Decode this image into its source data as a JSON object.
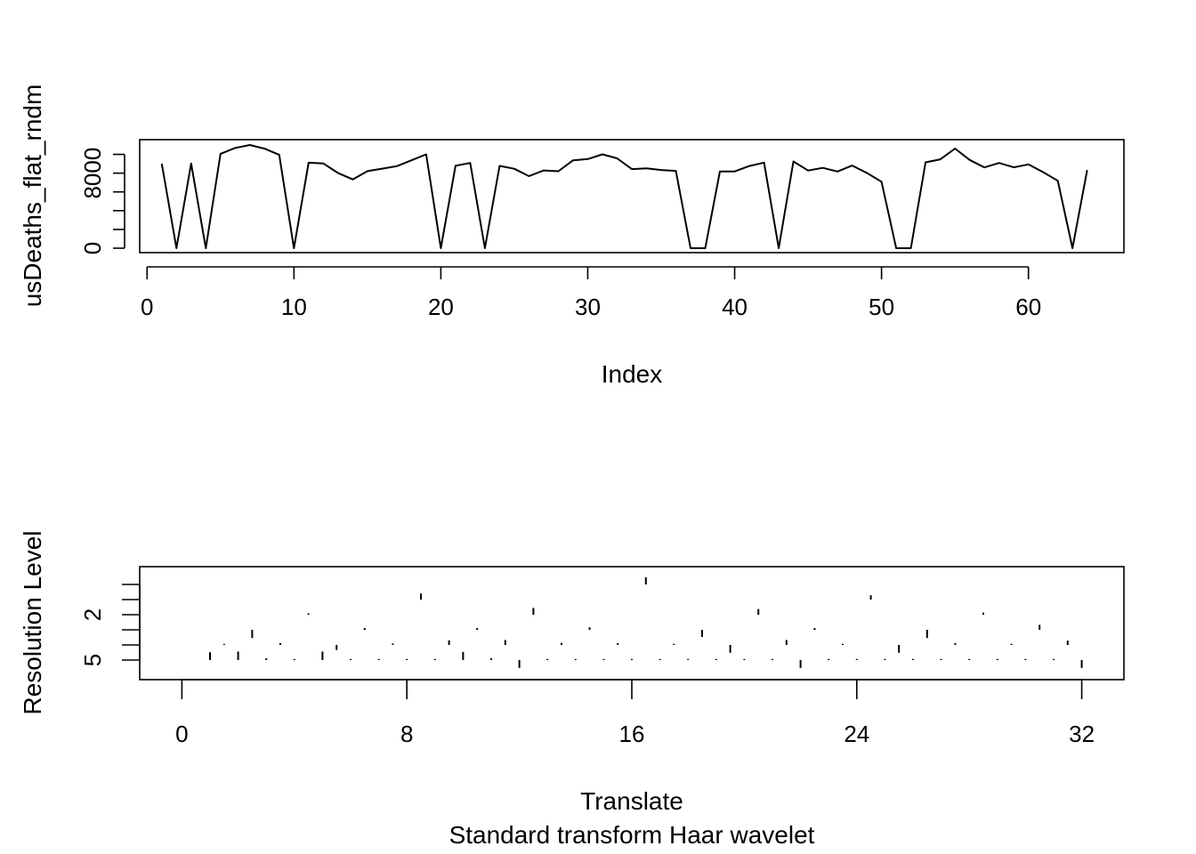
{
  "chart_data": [
    {
      "type": "line",
      "xlabel": "Index",
      "ylabel": "usDeaths_flat_rndm",
      "xlim": [
        -0.5,
        66.5
      ],
      "ylim": [
        0,
        11000
      ],
      "x_ticks": [
        0,
        10,
        20,
        30,
        40,
        50,
        60
      ],
      "y_ticks": [
        0,
        2000,
        4000,
        6000,
        8000,
        10000
      ],
      "y_tick_labels": [
        {
          "value": 0,
          "label": "0"
        },
        {
          "value": 8000,
          "label": "8000"
        }
      ],
      "x": [
        1,
        2,
        3,
        4,
        5,
        6,
        7,
        8,
        9,
        10,
        11,
        12,
        13,
        14,
        15,
        16,
        17,
        18,
        19,
        20,
        21,
        22,
        23,
        24,
        25,
        26,
        27,
        28,
        29,
        30,
        31,
        32,
        33,
        34,
        35,
        36,
        37,
        38,
        39,
        40,
        41,
        42,
        43,
        44,
        45,
        46,
        47,
        48,
        49,
        50,
        51,
        52,
        53,
        54,
        55,
        56,
        57,
        58,
        59,
        60,
        61,
        62,
        63,
        64
      ],
      "values": [
        9007,
        0,
        9027,
        0,
        10063,
        10688,
        11000,
        10609,
        9950,
        0,
        9110,
        9040,
        8010,
        7330,
        8210,
        8480,
        8740,
        9370,
        10000,
        0,
        8790,
        9080,
        0,
        8770,
        8470,
        7680,
        8290,
        8200,
        9370,
        9500,
        10000,
        9580,
        8430,
        8520,
        8340,
        8240,
        0,
        0,
        8180,
        8180,
        8760,
        9120,
        0,
        9250,
        8280,
        8560,
        8170,
        8810,
        8020,
        7080,
        0,
        0,
        9150,
        9470,
        10620,
        9410,
        8610,
        9080,
        8620,
        8930,
        8110,
        7190,
        0,
        8330
      ]
    },
    {
      "type": "scatter",
      "xlabel": "Translate",
      "subtitle": "Standard transform Haar wavelet",
      "ylabel": "Resolution Level",
      "xlim": [
        -1.5,
        33.5
      ],
      "x_ticks": [
        0,
        8,
        16,
        24,
        32
      ],
      "y_levels": [
        0,
        1,
        2,
        3,
        4,
        5
      ],
      "y_tick_labels": [
        {
          "level": 2,
          "label": "2"
        },
        {
          "level": 5,
          "label": "5"
        }
      ],
      "coefficients": [
        {
          "level": 0,
          "x": 16.5,
          "d": 2.0
        },
        {
          "level": 1,
          "x": 8.5,
          "d": 1.7
        },
        {
          "level": 1,
          "x": 24.5,
          "d": 1.2
        },
        {
          "level": 2,
          "x": 4.5,
          "d": 0.4
        },
        {
          "level": 2,
          "x": 12.5,
          "d": 1.9
        },
        {
          "level": 2,
          "x": 20.5,
          "d": 1.6
        },
        {
          "level": 2,
          "x": 28.5,
          "d": 0.6
        },
        {
          "level": 3,
          "x": 2.5,
          "d": -2.3
        },
        {
          "level": 3,
          "x": 6.5,
          "d": 0.5
        },
        {
          "level": 3,
          "x": 10.5,
          "d": 0.5
        },
        {
          "level": 3,
          "x": 14.5,
          "d": 0.7
        },
        {
          "level": 3,
          "x": 18.5,
          "d": -2.0
        },
        {
          "level": 3,
          "x": 22.5,
          "d": 0.5
        },
        {
          "level": 3,
          "x": 26.5,
          "d": -2.3
        },
        {
          "level": 3,
          "x": 30.5,
          "d": 1.4
        },
        {
          "level": 4,
          "x": 1.5,
          "d": 0.3
        },
        {
          "level": 4,
          "x": 3.5,
          "d": 0.5
        },
        {
          "level": 4,
          "x": 5.5,
          "d": -1.4
        },
        {
          "level": 4,
          "x": 7.5,
          "d": 0.4
        },
        {
          "level": 4,
          "x": 9.5,
          "d": 1.3
        },
        {
          "level": 4,
          "x": 11.5,
          "d": 1.4
        },
        {
          "level": 4,
          "x": 13.5,
          "d": 0.6
        },
        {
          "level": 4,
          "x": 15.5,
          "d": 0.5
        },
        {
          "level": 4,
          "x": 17.5,
          "d": 0.3
        },
        {
          "level": 4,
          "x": 19.5,
          "d": -2.2
        },
        {
          "level": 4,
          "x": 21.5,
          "d": 1.4
        },
        {
          "level": 4,
          "x": 23.5,
          "d": 0.3
        },
        {
          "level": 4,
          "x": 25.5,
          "d": -2.2
        },
        {
          "level": 4,
          "x": 27.5,
          "d": 0.5
        },
        {
          "level": 4,
          "x": 29.5,
          "d": 0.3
        },
        {
          "level": 4,
          "x": 31.5,
          "d": 1.2
        },
        {
          "level": 5,
          "x": 1,
          "d": 2.2
        },
        {
          "level": 5,
          "x": 2,
          "d": 2.4
        },
        {
          "level": 5,
          "x": 3,
          "d": 0.5
        },
        {
          "level": 5,
          "x": 4,
          "d": 0.3
        },
        {
          "level": 5,
          "x": 5,
          "d": 2.4
        },
        {
          "level": 5,
          "x": 6,
          "d": 0.3
        },
        {
          "level": 5,
          "x": 7,
          "d": 0.3
        },
        {
          "level": 5,
          "x": 8,
          "d": 0.3
        },
        {
          "level": 5,
          "x": 9,
          "d": 0.3
        },
        {
          "level": 5,
          "x": 10,
          "d": 2.3
        },
        {
          "level": 5,
          "x": 11,
          "d": 0.5
        },
        {
          "level": 5,
          "x": 12,
          "d": -2.2
        },
        {
          "level": 5,
          "x": 13,
          "d": 0.3
        },
        {
          "level": 5,
          "x": 14,
          "d": 0.3
        },
        {
          "level": 5,
          "x": 15,
          "d": 0.3
        },
        {
          "level": 5,
          "x": 16,
          "d": 0.3
        },
        {
          "level": 5,
          "x": 17,
          "d": 0.3
        },
        {
          "level": 5,
          "x": 18,
          "d": 0.3
        },
        {
          "level": 5,
          "x": 19,
          "d": 0.3
        },
        {
          "level": 5,
          "x": 20,
          "d": 0.3
        },
        {
          "level": 5,
          "x": 21,
          "d": 0.3
        },
        {
          "level": 5,
          "x": 22,
          "d": -2.2
        },
        {
          "level": 5,
          "x": 23,
          "d": 0.3
        },
        {
          "level": 5,
          "x": 24,
          "d": 0.3
        },
        {
          "level": 5,
          "x": 25,
          "d": 0.3
        },
        {
          "level": 5,
          "x": 26,
          "d": 0.3
        },
        {
          "level": 5,
          "x": 27,
          "d": 0.3
        },
        {
          "level": 5,
          "x": 28,
          "d": 0.3
        },
        {
          "level": 5,
          "x": 29,
          "d": 0.3
        },
        {
          "level": 5,
          "x": 30,
          "d": 0.3
        },
        {
          "level": 5,
          "x": 31,
          "d": 0.3
        },
        {
          "level": 5,
          "x": 32,
          "d": -2.2
        }
      ]
    }
  ]
}
